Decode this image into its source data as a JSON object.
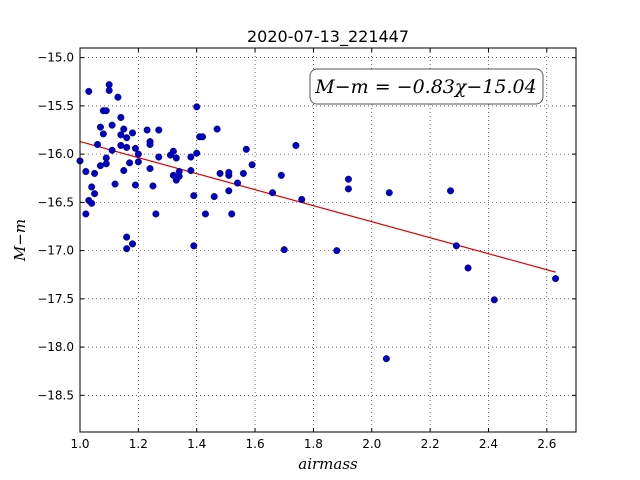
{
  "chart_data": {
    "type": "scatter",
    "title": "2020-07-13_221447",
    "xlabel": "airmass",
    "ylabel": "M−m",
    "xlim": [
      1.0,
      2.7
    ],
    "ylim": [
      -14.9,
      -18.88
    ],
    "y_inverted": true,
    "grid": true,
    "x_ticks": [
      1.0,
      1.2,
      1.4,
      1.6,
      1.8,
      2.0,
      2.2,
      2.4,
      2.6
    ],
    "x_tick_labels": [
      "1.0",
      "1.2",
      "1.4",
      "1.6",
      "1.8",
      "2.0",
      "2.2",
      "2.4",
      "2.6"
    ],
    "y_ticks": [
      -15.0,
      -15.5,
      -16.0,
      -16.5,
      -17.0,
      -17.5,
      -18.0,
      -18.5
    ],
    "y_tick_labels": [
      "−15.0",
      "−15.5",
      "−16.0",
      "−16.5",
      "−17.0",
      "−17.5",
      "−18.0",
      "−18.5"
    ],
    "annotation": "M−m = −0.83χ−15.04",
    "fit": {
      "slope": -0.83,
      "intercept": -15.04,
      "color": "#e00000",
      "x_range": [
        1.0,
        2.63
      ]
    },
    "point_color": "#0000cc",
    "points": [
      [
        1.0,
        -16.07
      ],
      [
        1.02,
        -16.62
      ],
      [
        1.02,
        -16.18
      ],
      [
        1.03,
        -16.48
      ],
      [
        1.03,
        -15.35
      ],
      [
        1.04,
        -16.34
      ],
      [
        1.04,
        -16.51
      ],
      [
        1.05,
        -16.2
      ],
      [
        1.05,
        -16.41
      ],
      [
        1.06,
        -15.9
      ],
      [
        1.07,
        -15.72
      ],
      [
        1.07,
        -16.12
      ],
      [
        1.08,
        -15.79
      ],
      [
        1.08,
        -15.55
      ],
      [
        1.09,
        -16.04
      ],
      [
        1.09,
        -16.1
      ],
      [
        1.09,
        -15.55
      ],
      [
        1.1,
        -15.28
      ],
      [
        1.1,
        -15.34
      ],
      [
        1.11,
        -15.7
      ],
      [
        1.11,
        -15.96
      ],
      [
        1.12,
        -16.31
      ],
      [
        1.13,
        -15.41
      ],
      [
        1.14,
        -15.91
      ],
      [
        1.14,
        -15.62
      ],
      [
        1.14,
        -15.8
      ],
      [
        1.15,
        -15.74
      ],
      [
        1.15,
        -16.17
      ],
      [
        1.16,
        -15.93
      ],
      [
        1.16,
        -16.86
      ],
      [
        1.16,
        -15.83
      ],
      [
        1.16,
        -16.98
      ],
      [
        1.17,
        -16.09
      ],
      [
        1.18,
        -16.93
      ],
      [
        1.18,
        -15.78
      ],
      [
        1.19,
        -15.94
      ],
      [
        1.19,
        -16.32
      ],
      [
        1.2,
        -16.0
      ],
      [
        1.2,
        -16.08
      ],
      [
        1.23,
        -15.75
      ],
      [
        1.24,
        -16.15
      ],
      [
        1.24,
        -15.87
      ],
      [
        1.24,
        -15.9
      ],
      [
        1.25,
        -16.33
      ],
      [
        1.26,
        -16.62
      ],
      [
        1.27,
        -15.75
      ],
      [
        1.27,
        -16.03
      ],
      [
        1.31,
        -16.01
      ],
      [
        1.32,
        -16.22
      ],
      [
        1.32,
        -15.97
      ],
      [
        1.33,
        -16.04
      ],
      [
        1.33,
        -16.27
      ],
      [
        1.34,
        -16.23
      ],
      [
        1.34,
        -16.18
      ],
      [
        1.38,
        -16.17
      ],
      [
        1.38,
        -16.03
      ],
      [
        1.39,
        -16.43
      ],
      [
        1.39,
        -16.95
      ],
      [
        1.4,
        -15.51
      ],
      [
        1.4,
        -15.99
      ],
      [
        1.41,
        -15.82
      ],
      [
        1.42,
        -15.82
      ],
      [
        1.43,
        -16.62
      ],
      [
        1.46,
        -16.44
      ],
      [
        1.47,
        -15.74
      ],
      [
        1.48,
        -16.2
      ],
      [
        1.51,
        -16.38
      ],
      [
        1.51,
        -16.22
      ],
      [
        1.51,
        -16.19
      ],
      [
        1.52,
        -16.62
      ],
      [
        1.54,
        -16.3
      ],
      [
        1.56,
        -16.2
      ],
      [
        1.57,
        -15.95
      ],
      [
        1.59,
        -16.11
      ],
      [
        1.66,
        -16.4
      ],
      [
        1.69,
        -16.22
      ],
      [
        1.7,
        -16.99
      ],
      [
        1.74,
        -15.91
      ],
      [
        1.76,
        -16.47
      ],
      [
        1.88,
        -17.0
      ],
      [
        1.92,
        -16.26
      ],
      [
        1.92,
        -16.36
      ],
      [
        2.05,
        -18.12
      ],
      [
        2.06,
        -16.4
      ],
      [
        2.27,
        -16.38
      ],
      [
        2.29,
        -16.95
      ],
      [
        2.33,
        -17.18
      ],
      [
        2.42,
        -17.51
      ],
      [
        2.63,
        -17.29
      ]
    ]
  }
}
